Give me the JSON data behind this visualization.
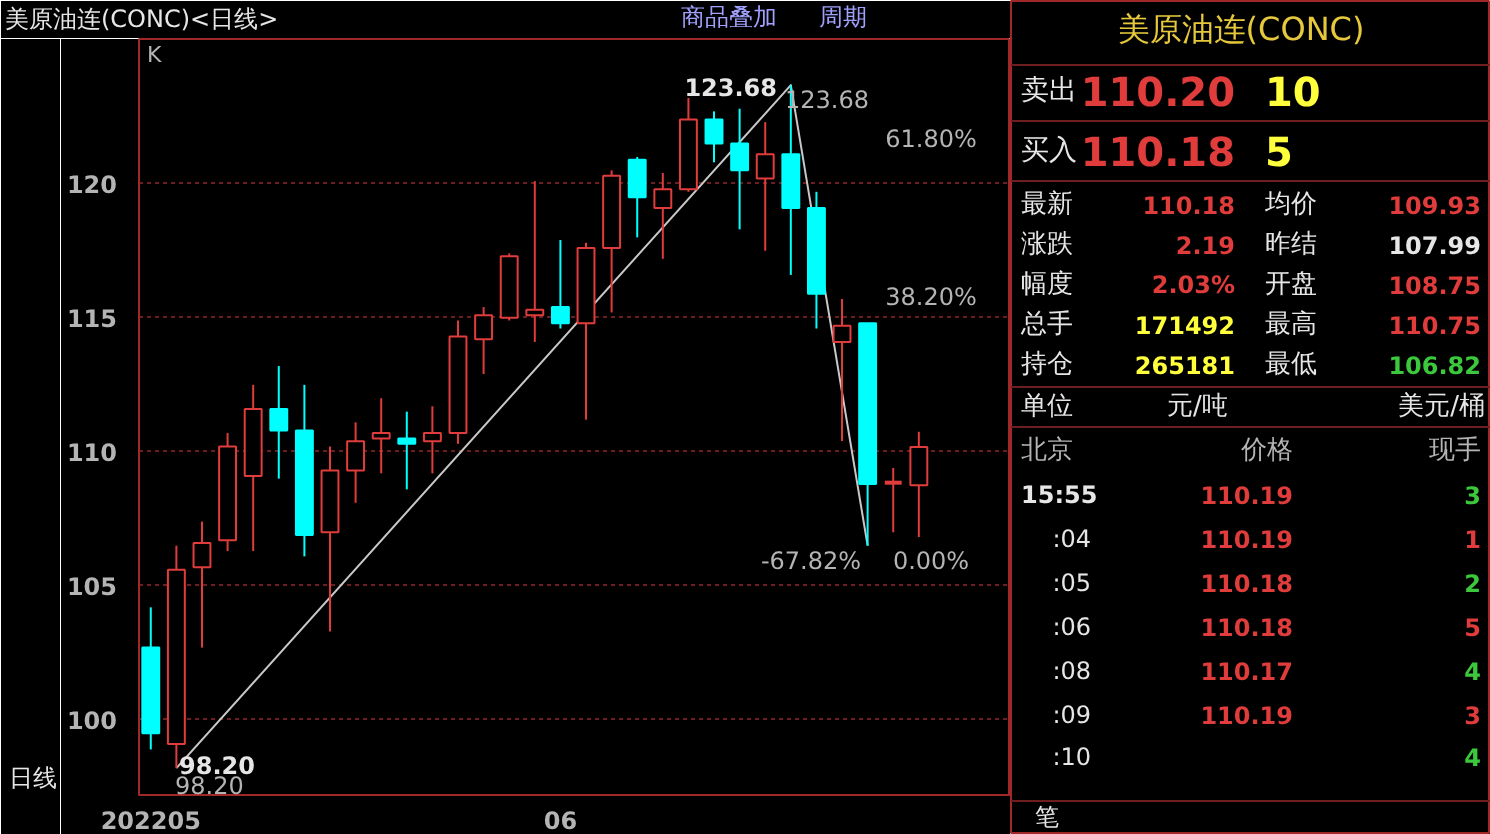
{
  "chart_data": [
    {
      "type": "candlestick",
      "title": "美原油连(CONC)<日线>",
      "categories": [
        "202205",
        null,
        null,
        null,
        null,
        null,
        null,
        null,
        null,
        null,
        null,
        null,
        null,
        null,
        null,
        null,
        "06",
        null,
        null,
        null,
        null,
        null,
        null,
        null,
        null,
        null,
        null,
        null,
        null,
        null,
        null
      ],
      "ohlc": [
        [
          102.7,
          104.2,
          98.9,
          99.5
        ],
        [
          99.1,
          106.5,
          98.2,
          105.6
        ],
        [
          105.7,
          107.4,
          102.7,
          106.6
        ],
        [
          106.7,
          110.7,
          106.3,
          110.2
        ],
        [
          109.1,
          112.5,
          106.3,
          111.6
        ],
        [
          111.6,
          113.2,
          109.0,
          110.8
        ],
        [
          110.8,
          112.5,
          106.1,
          106.9
        ],
        [
          107.0,
          110.2,
          103.3,
          109.3
        ],
        [
          109.3,
          111.1,
          108.1,
          110.4
        ],
        [
          110.5,
          112.0,
          109.2,
          110.7
        ],
        [
          110.5,
          111.5,
          108.6,
          110.3
        ],
        [
          110.4,
          111.7,
          109.2,
          110.7
        ],
        [
          110.7,
          114.9,
          110.3,
          114.3
        ],
        [
          114.2,
          115.4,
          112.9,
          115.1
        ],
        [
          115.0,
          117.4,
          114.9,
          117.3
        ],
        [
          115.1,
          120.1,
          114.1,
          115.3
        ],
        [
          115.4,
          117.9,
          114.6,
          114.8
        ],
        [
          114.8,
          117.8,
          111.2,
          117.6
        ],
        [
          117.6,
          120.5,
          115.2,
          120.3
        ],
        [
          120.9,
          121.0,
          118.0,
          119.5
        ],
        [
          119.1,
          120.4,
          117.2,
          119.8
        ],
        [
          119.8,
          123.2,
          119.7,
          122.4
        ],
        [
          122.4,
          122.7,
          120.8,
          121.5
        ],
        [
          121.5,
          122.8,
          118.3,
          120.5
        ],
        [
          120.2,
          122.3,
          117.5,
          121.1
        ],
        [
          121.1,
          123.68,
          116.6,
          119.1
        ],
        [
          119.1,
          119.7,
          114.6,
          115.9
        ],
        [
          114.1,
          115.7,
          110.4,
          114.7
        ],
        [
          114.8,
          114.8,
          106.5,
          108.8
        ],
        [
          108.8,
          109.4,
          107.0,
          108.9
        ],
        [
          108.75,
          110.75,
          106.82,
          110.18
        ]
      ],
      "series": [
        {
          "type": "line",
          "color": "#c8c8c8",
          "values": [
            null,
            98.2,
            null,
            null,
            null,
            null,
            null,
            null,
            null,
            null,
            null,
            null,
            null,
            null,
            null,
            null,
            null,
            null,
            null,
            null,
            null,
            null,
            null,
            null,
            null,
            123.68,
            null,
            null,
            106.5,
            null,
            null
          ]
        }
      ],
      "ylim": [
        97.2,
        125.4
      ],
      "yticks": [
        100,
        105,
        110,
        115,
        120
      ],
      "grid": "y",
      "annotations": [
        "K",
        "123.68",
        "123.68",
        "98.20",
        "98.20",
        "-67.82%",
        "日线",
        "商品叠加",
        "周期",
        "61.80%",
        "38.20%",
        "0.00%"
      ]
    },
    {
      "type": "other",
      "title": "美原油连(CONC)",
      "annotations": [
        "卖出",
        "110.20",
        "10",
        "买入",
        "110.18",
        "5",
        "最新",
        "110.18",
        "均价",
        "109.93",
        "涨跌",
        "2.19",
        "昨结",
        "107.99",
        "幅度",
        "2.03%",
        "开盘",
        "108.75",
        "总手",
        "171492",
        "最高",
        "110.75",
        "持仓",
        "265181",
        "最低",
        "106.82",
        "单位",
        "元/吨",
        "美元/桶",
        "北京",
        "价格",
        "现手",
        "15:55",
        "110.19",
        "3",
        ":04",
        "110.19",
        "1",
        ":05",
        "110.18",
        "2",
        ":06",
        "110.18",
        "5",
        ":08",
        "110.17",
        "4",
        ":09",
        "110.19",
        "3",
        ":10",
        "4",
        "笔"
      ]
    }
  ]
}
